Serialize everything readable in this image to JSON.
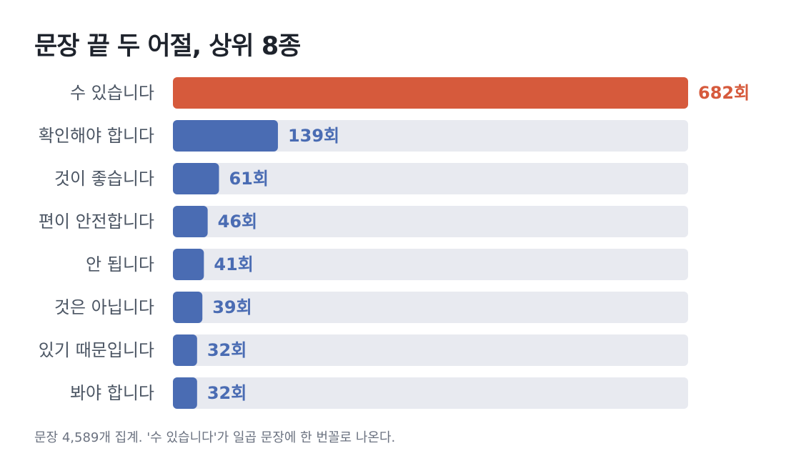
{
  "title": "문장 끝 두 어절, 상위 8종",
  "footnote": "문장 4,589개 집계. '수 있습니다'가 일곱 문장에 한 번꼴로 나온다.",
  "colors": {
    "highlight": "#d65a3c",
    "bar": "#4a6cb3",
    "track": "#e8eaf0",
    "label": "#4b5563",
    "title": "#1e232c"
  },
  "chart_data": {
    "type": "bar",
    "orientation": "horizontal",
    "title": "문장 끝 두 어절, 상위 8종",
    "categories": [
      "수 있습니다",
      "확인해야 합니다",
      "것이 좋습니다",
      "편이 안전합니다",
      "안 됩니다",
      "것은 아닙니다",
      "있기 때문입니다",
      "봐야 합니다"
    ],
    "values": [
      682,
      139,
      61,
      46,
      41,
      39,
      32,
      32
    ],
    "value_labels": [
      "682회",
      "139회",
      "61회",
      "46회",
      "41회",
      "39회",
      "32회",
      "32회"
    ],
    "xlim": [
      0,
      682
    ],
    "grid": false,
    "highlight_index": 0
  }
}
